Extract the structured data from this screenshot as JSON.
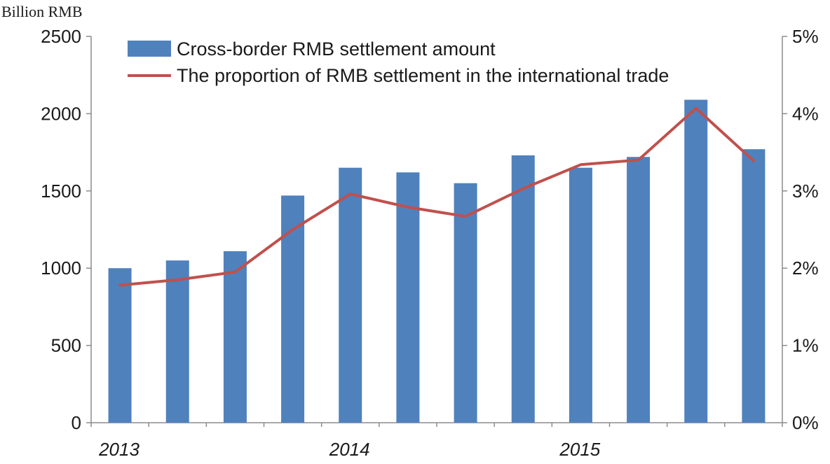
{
  "chart_data": {
    "type": "bar",
    "unit_label": "Billion RMB",
    "x": [
      "2013Q1",
      "2013Q2",
      "2013Q3",
      "2013Q4",
      "2014Q1",
      "2014Q2",
      "2014Q3",
      "2014Q4",
      "2015Q1",
      "2015Q2",
      "2015Q3",
      "2015Q4"
    ],
    "year_labels": [
      {
        "label": "2013",
        "index": 0
      },
      {
        "label": "2014",
        "index": 4
      },
      {
        "label": "2015",
        "index": 8
      }
    ],
    "y_left": {
      "ylim": [
        0,
        2500
      ],
      "ticks": [
        "0",
        "500",
        "1000",
        "1500",
        "2000",
        "2500"
      ]
    },
    "y_right": {
      "ylim": [
        0,
        5
      ],
      "ticks": [
        "0%",
        "1%",
        "2%",
        "3%",
        "4%",
        "5%"
      ]
    },
    "series": [
      {
        "name": "Cross-border RMB settlement amount",
        "kind": "bar",
        "axis": "left",
        "color": "#4f81bd",
        "values": [
          1000,
          1050,
          1110,
          1470,
          1650,
          1620,
          1550,
          1730,
          1650,
          1720,
          2090,
          1770
        ]
      },
      {
        "name": "The proportion of RMB settlement in the international trade",
        "kind": "line",
        "axis": "right",
        "color": "#c0504d",
        "values": [
          1.78,
          1.85,
          1.95,
          2.5,
          2.96,
          2.79,
          2.67,
          3.03,
          3.34,
          3.4,
          4.07,
          3.39
        ]
      }
    ],
    "legend": "top",
    "grid": false
  }
}
